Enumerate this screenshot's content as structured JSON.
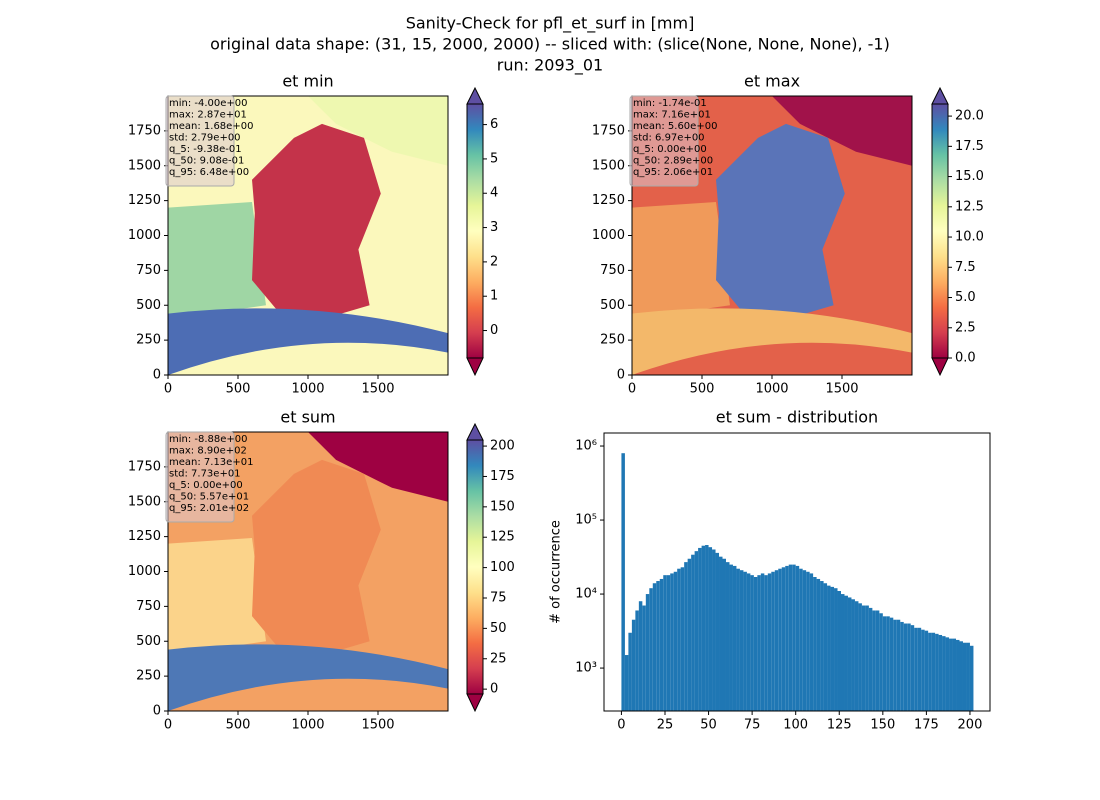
{
  "figure": {
    "title_lines": [
      "Sanity-Check for pfl_et_surf in [mm]",
      "original data shape: (31, 15, 2000, 2000) -- sliced with: (slice(None, None, None), -1)",
      "run: 2093_01"
    ]
  },
  "chart_data": [
    {
      "type": "heatmap",
      "title": "et min",
      "xlim": [
        0,
        2000
      ],
      "ylim": [
        0,
        2000
      ],
      "xticks": [
        0,
        500,
        1000,
        1500
      ],
      "yticks": [
        0,
        250,
        500,
        750,
        1000,
        1250,
        1500,
        1750
      ],
      "colorbar": {
        "cmap": "Spectral",
        "lim": [
          -0.8,
          6.6
        ],
        "ticks": [
          0,
          1,
          2,
          3,
          4,
          5,
          6
        ]
      },
      "stats": [
        "min: -4.00e+00",
        "max: 2.87e+01",
        "mean: 1.68e+00",
        "std: 2.79e+00",
        "q_5: -9.38e-01",
        "q_50: 9.08e-01",
        "q_95: 6.48e+00"
      ]
    },
    {
      "type": "heatmap",
      "title": "et max",
      "xlim": [
        0,
        2000
      ],
      "ylim": [
        0,
        2000
      ],
      "xticks": [
        0,
        500,
        1000,
        1500
      ],
      "yticks": [
        0,
        250,
        500,
        750,
        1000,
        1250,
        1500,
        1750
      ],
      "colorbar": {
        "cmap": "Spectral",
        "lim": [
          0,
          21
        ],
        "ticks": [
          {
            "value": 0,
            "label": "0.0"
          },
          2.5,
          {
            "value": 5,
            "label": "5.0"
          },
          7.5,
          {
            "value": 10,
            "label": "10.0"
          },
          12.5,
          {
            "value": 15,
            "label": "15.0"
          },
          17.5,
          {
            "value": 20,
            "label": "20.0"
          }
        ]
      },
      "stats": [
        "min: -1.74e-01",
        "max: 7.16e+01",
        "mean: 5.60e+00",
        "std: 6.97e+00",
        "q_5: 0.00e+00",
        "q_50: 2.89e+00",
        "q_95: 2.06e+01"
      ]
    },
    {
      "type": "heatmap",
      "title": "et sum",
      "xlim": [
        0,
        2000
      ],
      "ylim": [
        0,
        2000
      ],
      "xticks": [
        0,
        500,
        1000,
        1500
      ],
      "yticks": [
        0,
        250,
        500,
        750,
        1000,
        1250,
        1500,
        1750
      ],
      "colorbar": {
        "cmap": "Spectral",
        "lim": [
          -4,
          205
        ],
        "ticks": [
          0,
          25,
          50,
          75,
          100,
          125,
          150,
          175,
          200
        ]
      },
      "stats": [
        "min: -8.88e+00",
        "max: 8.90e+02",
        "mean: 7.13e+01",
        "std: 7.73e+01",
        "q_5: 0.00e+00",
        "q_50: 5.57e+01",
        "q_95: 2.01e+02"
      ]
    },
    {
      "type": "histogram",
      "title": "et sum - distribution",
      "ylabel": "# of occurrence",
      "color": "#1f77b4",
      "log_y": true,
      "xlim": [
        -10,
        211.5
      ],
      "ylim": [
        263,
        1500000
      ],
      "xticks": [
        0,
        25,
        50,
        75,
        100,
        125,
        150,
        175,
        200
      ],
      "yticks": [
        {
          "value": 1000,
          "label": "10³"
        },
        {
          "value": 10000,
          "label": "10⁴"
        },
        {
          "value": 100000,
          "label": "10⁵"
        },
        {
          "value": 1000000,
          "label": "10⁶"
        }
      ],
      "bins": [
        0,
        2,
        4,
        6,
        8,
        10,
        12,
        14,
        16,
        18,
        20,
        22,
        24,
        26,
        28,
        30,
        32,
        34,
        36,
        38,
        40,
        42,
        44,
        46,
        48,
        50,
        52,
        54,
        56,
        58,
        60,
        62,
        64,
        66,
        68,
        70,
        72,
        74,
        76,
        78,
        80,
        82,
        84,
        86,
        88,
        90,
        92,
        94,
        96,
        98,
        100,
        102,
        104,
        106,
        108,
        110,
        112,
        114,
        116,
        118,
        120,
        122,
        124,
        126,
        128,
        130,
        132,
        134,
        136,
        138,
        140,
        142,
        144,
        146,
        148,
        150,
        152,
        154,
        156,
        158,
        160,
        162,
        164,
        166,
        168,
        170,
        172,
        174,
        176,
        178,
        180,
        182,
        184,
        186,
        188,
        190,
        192,
        194,
        196,
        198,
        200,
        202
      ],
      "values": [
        800000,
        1500,
        3000,
        4500,
        6000,
        8000,
        7000,
        10000,
        12000,
        14000,
        15000,
        16000,
        18000,
        18000,
        19000,
        20000,
        22000,
        23000,
        27000,
        30000,
        34000,
        38000,
        42000,
        45000,
        46000,
        43000,
        40000,
        36000,
        32000,
        30000,
        27000,
        25000,
        24000,
        22000,
        21000,
        20000,
        19000,
        18000,
        17000,
        18000,
        19000,
        18000,
        19000,
        20000,
        21000,
        22000,
        23000,
        24000,
        25000,
        25000,
        24000,
        22000,
        21000,
        20000,
        19000,
        17000,
        16000,
        15000,
        14000,
        13000,
        12500,
        12000,
        11000,
        10000,
        9500,
        9000,
        8500,
        8000,
        7500,
        7000,
        7000,
        6500,
        6000,
        6000,
        5500,
        5000,
        5000,
        4800,
        4500,
        4500,
        4200,
        4000,
        4000,
        3800,
        3500,
        3500,
        3300,
        3200,
        3000,
        3000,
        2900,
        2800,
        2700,
        2600,
        2500,
        2500,
        2400,
        2300,
        2200,
        2200,
        2000
      ]
    }
  ]
}
